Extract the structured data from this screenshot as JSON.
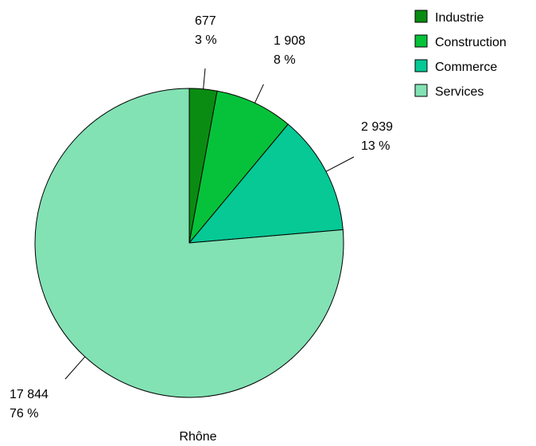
{
  "chart_data": {
    "type": "pie",
    "xlabel": "Rhône",
    "categories": [
      "Industrie",
      "Construction",
      "Commerce",
      "Services"
    ],
    "values": [
      677,
      1908,
      2939,
      17844
    ],
    "value_labels": [
      "677",
      "1 908",
      "2 939",
      "17 844"
    ],
    "percent_labels": [
      "3 %",
      "8 %",
      "13 %",
      "76 %"
    ],
    "colors": [
      "#0a8c12",
      "#06c23a",
      "#06c995",
      "#82e2b4"
    ],
    "legend_position": "top-right",
    "start_angle": "12 o'clock",
    "direction": "clockwise"
  }
}
